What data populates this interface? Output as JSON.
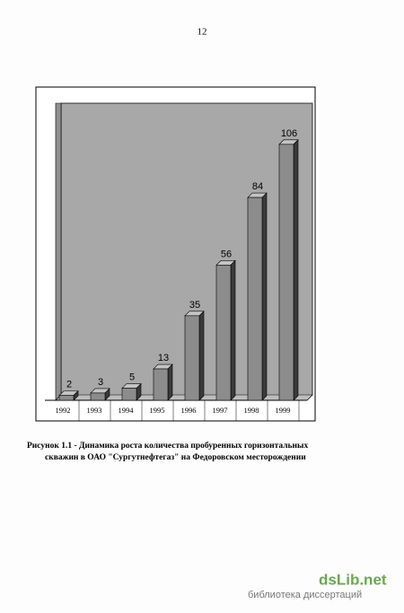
{
  "page_number": "12",
  "chart_data": {
    "type": "bar",
    "categories": [
      "1992",
      "1993",
      "1994",
      "1995",
      "1996",
      "1997",
      "1998",
      "1999"
    ],
    "values": [
      2,
      3,
      5,
      13,
      35,
      56,
      84,
      106
    ],
    "color": "#8c8c8c"
  },
  "caption": [
    "Рисунок 1.1 - Динамика роста количества пробуренных горизонтальных",
    "скважин в ОАО \"Сургутнефтегаз\" на Федоровском месторождении"
  ],
  "watermark": {
    "logo": "dsLib.net",
    "subtitle": "библиотека диссертаций"
  }
}
